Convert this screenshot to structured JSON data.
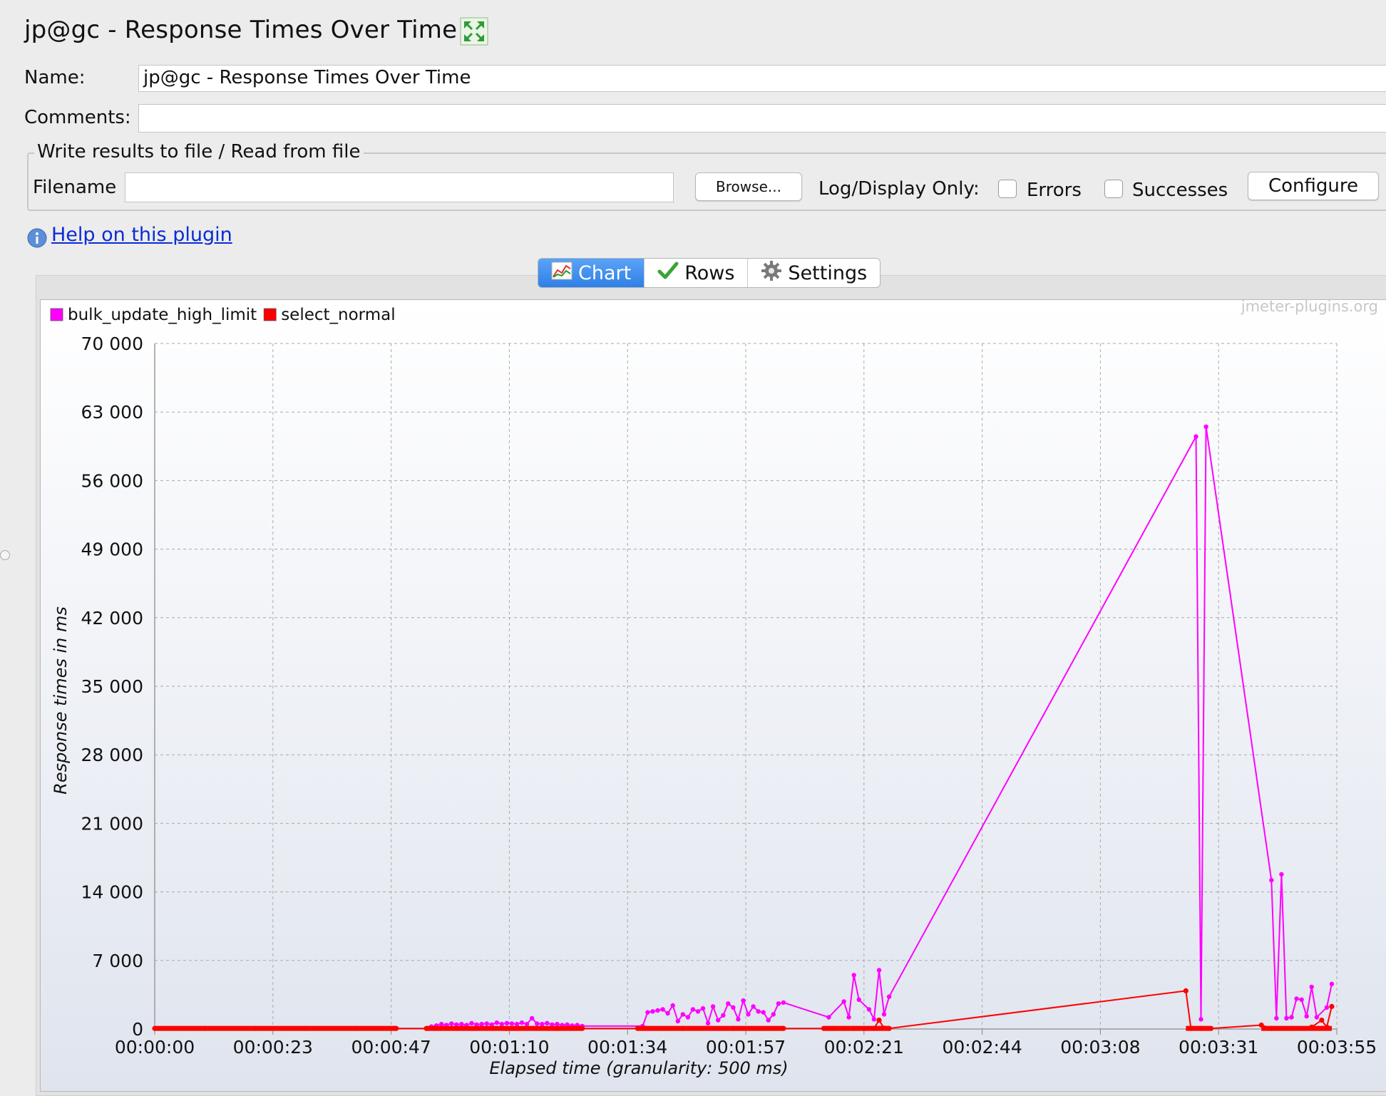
{
  "window": {
    "title": "jp@gc - Response Times Over Time"
  },
  "form": {
    "name_label": "Name:",
    "name_value": "jp@gc - Response Times Over Time",
    "comments_label": "Comments:",
    "comments_value": ""
  },
  "file_group": {
    "legend": "Write results to file / Read from file",
    "filename_label": "Filename",
    "filename_value": "",
    "browse_label": "Browse...",
    "log_display_label": "Log/Display Only:",
    "errors_label": "Errors",
    "errors_checked": false,
    "successes_label": "Successes",
    "successes_checked": false,
    "configure_label": "Configure"
  },
  "help": {
    "link_text": "Help on this plugin"
  },
  "tabs": [
    {
      "label": "Chart",
      "icon": "chart-icon",
      "active": true
    },
    {
      "label": "Rows",
      "icon": "checkmark-icon",
      "active": false
    },
    {
      "label": "Settings",
      "icon": "gear-icon",
      "active": false
    }
  ],
  "chart_data": {
    "type": "line",
    "watermark": "jmeter-plugins.org",
    "ylabel": "Response times in ms",
    "xlabel": "Elapsed time (granularity: 500 ms)",
    "ylim": [
      0,
      70000
    ],
    "yticks": [
      "70 000",
      "63 000",
      "56 000",
      "49 000",
      "42 000",
      "35 000",
      "28 000",
      "21 000",
      "14 000",
      "7 000",
      "0"
    ],
    "xticks": [
      "00:00:00",
      "00:00:23",
      "00:00:47",
      "00:01:10",
      "00:01:34",
      "00:01:57",
      "00:02:21",
      "00:02:44",
      "00:03:08",
      "00:03:31",
      "00:03:55"
    ],
    "xlim_seconds": [
      0,
      235
    ],
    "grid": true,
    "legend_position": "top-left",
    "series": [
      {
        "name": "bulk_update_high_limit",
        "color": "#ff00ff",
        "points": [
          [
            55,
            250
          ],
          [
            56,
            350
          ],
          [
            57,
            500
          ],
          [
            58,
            400
          ],
          [
            59,
            550
          ],
          [
            60,
            450
          ],
          [
            61,
            500
          ],
          [
            62,
            400
          ],
          [
            63,
            600
          ],
          [
            64,
            450
          ],
          [
            65,
            500
          ],
          [
            66,
            550
          ],
          [
            67,
            450
          ],
          [
            68,
            650
          ],
          [
            69,
            500
          ],
          [
            70,
            600
          ],
          [
            71,
            550
          ],
          [
            72,
            500
          ],
          [
            73,
            650
          ],
          [
            74,
            500
          ],
          [
            75,
            1100
          ],
          [
            76,
            550
          ],
          [
            77,
            500
          ],
          [
            78,
            600
          ],
          [
            79,
            450
          ],
          [
            80,
            500
          ],
          [
            81,
            400
          ],
          [
            82,
            450
          ],
          [
            83,
            350
          ],
          [
            84,
            400
          ],
          [
            85,
            300
          ],
          [
            97,
            300
          ],
          [
            98,
            1700
          ],
          [
            99,
            1800
          ],
          [
            100,
            1900
          ],
          [
            101,
            2000
          ],
          [
            102,
            1600
          ],
          [
            103,
            2400
          ],
          [
            104,
            800
          ],
          [
            105,
            1500
          ],
          [
            106,
            1200
          ],
          [
            107,
            2000
          ],
          [
            108,
            1800
          ],
          [
            109,
            2100
          ],
          [
            110,
            600
          ],
          [
            111,
            2300
          ],
          [
            112,
            900
          ],
          [
            113,
            1400
          ],
          [
            114,
            2600
          ],
          [
            115,
            2200
          ],
          [
            116,
            1000
          ],
          [
            117,
            2900
          ],
          [
            118,
            1500
          ],
          [
            119,
            2300
          ],
          [
            120,
            1800
          ],
          [
            121,
            1700
          ],
          [
            122,
            900
          ],
          [
            123,
            1500
          ],
          [
            124,
            2600
          ],
          [
            125,
            2700
          ],
          [
            134,
            1200
          ],
          [
            137,
            2800
          ],
          [
            138,
            1200
          ],
          [
            139,
            5500
          ],
          [
            140,
            3000
          ],
          [
            142,
            2000
          ],
          [
            143,
            1000
          ],
          [
            144,
            6000
          ],
          [
            145,
            1500
          ],
          [
            146,
            3300
          ],
          [
            207,
            60500
          ],
          [
            208,
            1000
          ],
          [
            209,
            61500
          ],
          [
            222,
            15200
          ],
          [
            223,
            1100
          ],
          [
            224,
            15800
          ],
          [
            225,
            1100
          ],
          [
            226,
            1200
          ],
          [
            227,
            3100
          ],
          [
            228,
            3000
          ],
          [
            229,
            1300
          ],
          [
            230,
            4300
          ],
          [
            231,
            1200
          ],
          [
            233,
            2200
          ],
          [
            234,
            4600
          ]
        ]
      },
      {
        "name": "select_normal",
        "color": "#ff0000",
        "points": [
          [
            0,
            60
          ],
          [
            10,
            60
          ],
          [
            20,
            60
          ],
          [
            30,
            60
          ],
          [
            40,
            60
          ],
          [
            48,
            60
          ],
          [
            54,
            60
          ],
          [
            60,
            60
          ],
          [
            70,
            60
          ],
          [
            80,
            60
          ],
          [
            85,
            60
          ],
          [
            96,
            60
          ],
          [
            105,
            60
          ],
          [
            115,
            60
          ],
          [
            125,
            60
          ],
          [
            133,
            60
          ],
          [
            135,
            60
          ],
          [
            137,
            60
          ],
          [
            139,
            60
          ],
          [
            141,
            60
          ],
          [
            143,
            60
          ],
          [
            144,
            900
          ],
          [
            145,
            80
          ],
          [
            146,
            60
          ],
          [
            205,
            3900
          ],
          [
            206,
            60
          ],
          [
            208,
            60
          ],
          [
            210,
            60
          ],
          [
            220,
            400
          ],
          [
            222,
            60
          ],
          [
            226,
            60
          ],
          [
            230,
            200
          ],
          [
            232,
            900
          ],
          [
            233,
            200
          ],
          [
            234,
            2300
          ]
        ]
      }
    ]
  }
}
